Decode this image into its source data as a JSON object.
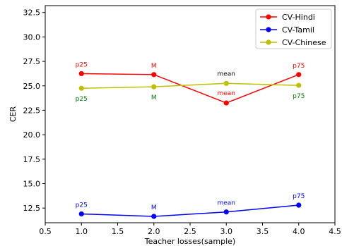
{
  "chart_data": {
    "type": "line",
    "title": "",
    "xlabel": "Teacher losses(sample)",
    "ylabel": "CER",
    "xlim": [
      0.5,
      4.5
    ],
    "ylim": [
      11.0,
      33.2
    ],
    "xticks": [
      "0.5",
      "1.0",
      "1.5",
      "2.0",
      "2.5",
      "3.0",
      "3.5",
      "4.0",
      "4.5"
    ],
    "yticks": [
      "12.5",
      "15.0",
      "17.5",
      "20.0",
      "22.5",
      "25.0",
      "27.5",
      "30.0",
      "32.5"
    ],
    "grid": false,
    "legend_position": "top-right",
    "series": [
      {
        "name": "CV-Hindi",
        "color": "#ff0000",
        "x": [
          1.0,
          2.0,
          3.0,
          4.0
        ],
        "y": [
          26.25,
          26.15,
          23.25,
          26.15
        ],
        "annotations": [
          "p25",
          "M",
          "mean",
          "p75"
        ]
      },
      {
        "name": "CV-Tamil",
        "color": "#0000ff",
        "x": [
          1.0,
          2.0,
          3.0,
          4.0
        ],
        "y": [
          11.9,
          11.65,
          12.1,
          12.8
        ],
        "annotations": [
          "p25",
          "M",
          "mean",
          "p75"
        ]
      },
      {
        "name": "CV-Chinese",
        "color": "#bfbf00",
        "x": [
          1.0,
          2.0,
          3.0,
          4.0
        ],
        "y": [
          24.75,
          24.9,
          25.25,
          25.05
        ],
        "annotations": [
          "p25",
          "M",
          "mean",
          "p75"
        ],
        "annotation_colors": [
          "#008000",
          "#008000",
          "#000000",
          "#008000"
        ]
      }
    ]
  }
}
